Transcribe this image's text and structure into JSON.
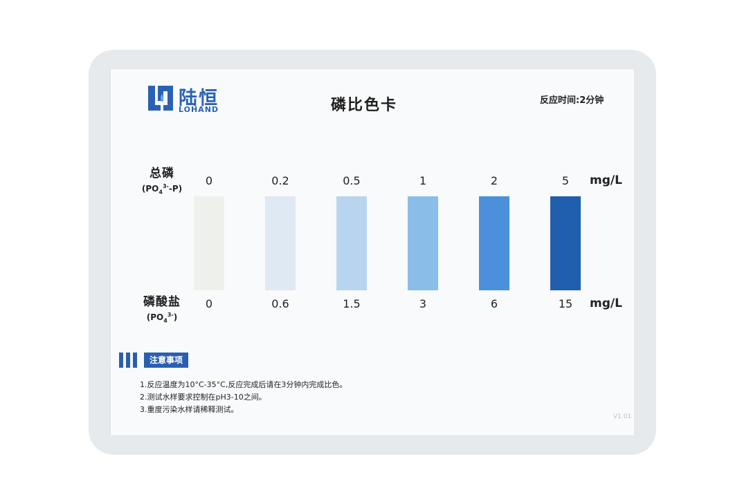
{
  "brand": {
    "name_cn": "陆恒",
    "name_en": "LOHAND"
  },
  "title": "磷比色卡",
  "reaction_time": "反应时间:2分钟",
  "rows": {
    "total_phosphorus": {
      "name": "总磷",
      "formula_prefix": "(PO",
      "formula_sub": "4",
      "formula_sup": "3-",
      "formula_suffix": "-P)",
      "values": [
        "0",
        "0.2",
        "0.5",
        "1",
        "2",
        "5"
      ],
      "unit": "mg/L"
    },
    "phosphate": {
      "name": "磷酸盐",
      "formula_prefix": "(PO",
      "formula_sub": "4",
      "formula_sup": "3-",
      "formula_suffix": ")",
      "values": [
        "0",
        "0.6",
        "1.5",
        "3",
        "6",
        "15"
      ],
      "unit": "mg/L"
    }
  },
  "swatch_colors": [
    "#eef0ec",
    "#dfe9f3",
    "#b9d4ee",
    "#8bbde9",
    "#4a90db",
    "#1f5fae"
  ],
  "notice": {
    "title": "注意事项",
    "items": [
      "1.反应温度为10°C-35°C,反应完成后请在3分钟内完成比色。",
      "2.测试水样要求控制在pH3-10之间。",
      "3.重度污染水样请稀释测试。"
    ]
  },
  "version": "V1.01"
}
